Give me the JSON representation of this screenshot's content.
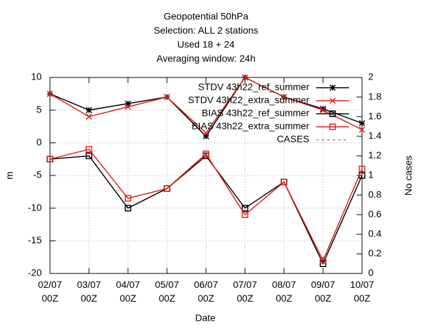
{
  "chart_data": {
    "type": "line",
    "title": [
      "Geopotential 50hPa",
      "Selection: ALL       2 stations",
      "Used  18  + 24",
      "Averaging window: 24h"
    ],
    "xlabel": "Date",
    "ylabel": "m",
    "y2label": "No cases",
    "categories": [
      "02/07 00Z",
      "03/07 00Z",
      "04/07 00Z",
      "05/07 00Z",
      "06/07 00Z",
      "07/07 00Z",
      "08/07 00Z",
      "09/07 00Z",
      "10/07 00Z"
    ],
    "ylim": [
      -20,
      10
    ],
    "yticks": [
      -20,
      -15,
      -10,
      -5,
      0,
      5,
      10
    ],
    "y2lim": [
      0,
      2
    ],
    "y2ticks": [
      0,
      0.2,
      0.4,
      0.6,
      0.8,
      1,
      1.2,
      1.4,
      1.6,
      1.8,
      2
    ],
    "grid": true,
    "legend": "top-right",
    "series": [
      {
        "name": "STDV 43h22_ref_summer",
        "color": "#000000",
        "marker": "star",
        "values": [
          7.5,
          5,
          6,
          7,
          1,
          10,
          7,
          5.2,
          3
        ]
      },
      {
        "name": "STDV 43h22_extra_summer",
        "color": "#e0201b",
        "marker": "x",
        "values": [
          7.5,
          4,
          5.5,
          7,
          1.5,
          10,
          7,
          5,
          2
        ]
      },
      {
        "name": "BIAS 43h22_ref_summer",
        "color": "#000000",
        "marker": "square",
        "values": [
          -2.5,
          -2,
          -10,
          -7,
          -2,
          -10,
          -6,
          -18.5,
          -5
        ]
      },
      {
        "name": "BIAS 43h22_extra_summer",
        "color": "#e0201b",
        "marker": "square",
        "values": [
          -2.5,
          -1,
          -8.5,
          -7,
          -1.7,
          -11,
          -6,
          -18,
          -4
        ]
      },
      {
        "name": "CASES",
        "color": "#a0a0a0",
        "dash": true,
        "axis": "y2",
        "values": [
          null,
          null,
          null,
          null,
          null,
          null,
          null,
          null,
          null
        ]
      }
    ]
  }
}
